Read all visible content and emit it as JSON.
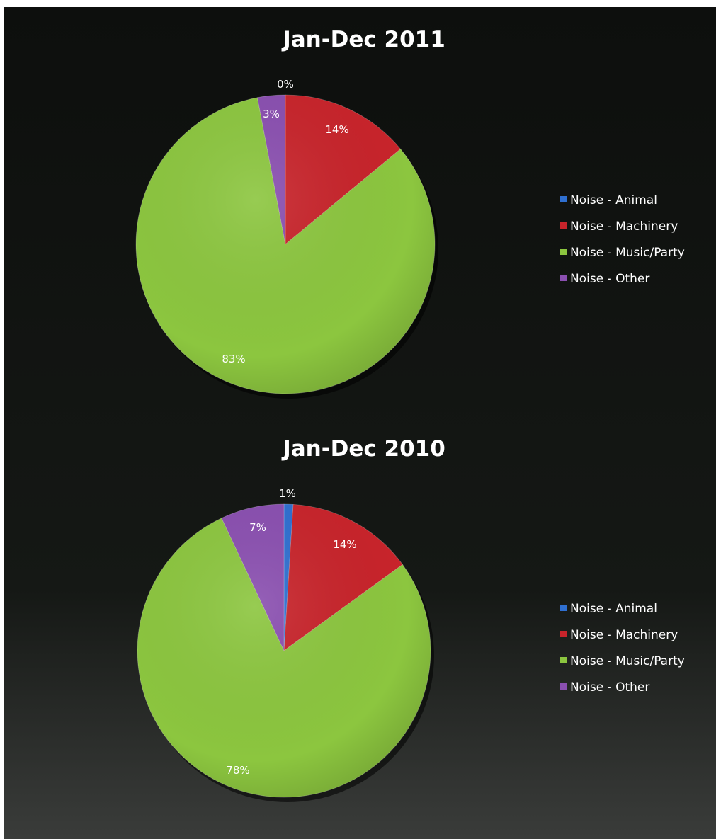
{
  "chart_data": [
    {
      "type": "pie",
      "title": "Jan-Dec 2011",
      "categories": [
        "Noise - Animal",
        "Noise - Machinery",
        "Noise - Music/Party",
        "Noise - Other"
      ],
      "values": [
        0,
        14,
        83,
        3
      ],
      "labels": [
        "0%",
        "14%",
        "83%",
        "3%"
      ],
      "colors": [
        "#2f6fd0",
        "#c8242b",
        "#8cc63f",
        "#8a4fb0"
      ],
      "legend_position": "right"
    },
    {
      "type": "pie",
      "title": "Jan-Dec 2010",
      "categories": [
        "Noise - Animal",
        "Noise - Machinery",
        "Noise - Music/Party",
        "Noise - Other"
      ],
      "values": [
        1,
        14,
        78,
        7
      ],
      "labels": [
        "1%",
        "14%",
        "78%",
        "7%"
      ],
      "colors": [
        "#2f6fd0",
        "#c8242b",
        "#8cc63f",
        "#8a4fb0"
      ],
      "legend_position": "right"
    }
  ]
}
